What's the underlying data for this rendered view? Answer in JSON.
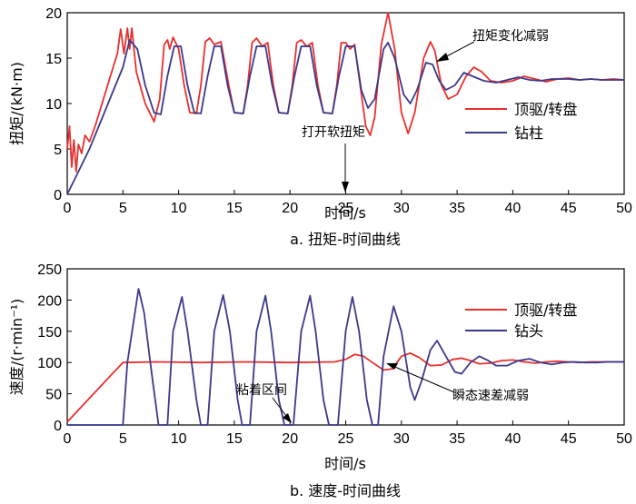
{
  "colors": {
    "drive": "#e8302e",
    "bit": "#3a3a8c",
    "axis": "#000000"
  },
  "chart_data": [
    {
      "type": "line",
      "caption": "a. 扭矩-时间曲线",
      "xlabel": "时间/s",
      "ylabel": "扭矩/(kN·m)",
      "xlim": [
        0,
        50
      ],
      "ylim": [
        0,
        20
      ],
      "xticks": [
        0,
        5,
        10,
        15,
        20,
        25,
        30,
        35,
        40,
        45,
        50
      ],
      "yticks": [
        0,
        5,
        10,
        15,
        20
      ],
      "annotations": [
        {
          "text": "打开软扭矩",
          "x": 25,
          "y": 0
        },
        {
          "text": "扭矩变化减弱",
          "x": 33,
          "y": 12.5
        }
      ],
      "legend_position": "right",
      "series": [
        {
          "name": "顶驱/转盘",
          "color": "#e8302e",
          "points": [
            [
              0,
              5
            ],
            [
              0.2,
              7.5
            ],
            [
              0.4,
              3
            ],
            [
              0.6,
              6
            ],
            [
              0.8,
              2.5
            ],
            [
              1.0,
              5.5
            ],
            [
              1.3,
              4.5
            ],
            [
              1.6,
              6.5
            ],
            [
              2,
              5.8
            ],
            [
              2.5,
              7.5
            ],
            [
              3,
              9.5
            ],
            [
              3.5,
              11.5
            ],
            [
              4,
              13.5
            ],
            [
              4.5,
              15.5
            ],
            [
              4.8,
              18.2
            ],
            [
              5.1,
              15.5
            ],
            [
              5.4,
              18.3
            ],
            [
              5.6,
              16
            ],
            [
              5.8,
              18.3
            ],
            [
              6.2,
              13.5
            ],
            [
              7,
              10
            ],
            [
              7.8,
              8
            ],
            [
              8.3,
              10.5
            ],
            [
              8.7,
              16.5
            ],
            [
              9,
              17
            ],
            [
              9.2,
              16
            ],
            [
              9.5,
              17.3
            ],
            [
              10,
              16
            ],
            [
              10.5,
              12
            ],
            [
              11,
              9
            ],
            [
              11.6,
              8.9
            ],
            [
              12,
              12
            ],
            [
              12.4,
              16.8
            ],
            [
              12.8,
              17.2
            ],
            [
              13.2,
              16.5
            ],
            [
              13.8,
              16.8
            ],
            [
              14.5,
              12
            ],
            [
              15,
              9
            ],
            [
              15.8,
              8.9
            ],
            [
              16.2,
              12
            ],
            [
              16.6,
              16.7
            ],
            [
              17,
              17.2
            ],
            [
              17.5,
              16.3
            ],
            [
              18,
              16.7
            ],
            [
              18.5,
              12
            ],
            [
              19,
              9
            ],
            [
              19.8,
              8.9
            ],
            [
              20.2,
              12
            ],
            [
              20.6,
              16.7
            ],
            [
              21,
              17
            ],
            [
              21.5,
              16.3
            ],
            [
              22,
              16.7
            ],
            [
              22.5,
              12
            ],
            [
              23,
              9
            ],
            [
              23.8,
              8.9
            ],
            [
              24.2,
              12
            ],
            [
              24.6,
              16.7
            ],
            [
              25,
              16.7
            ],
            [
              25.4,
              16
            ],
            [
              25.8,
              16.5
            ],
            [
              26.3,
              12
            ],
            [
              26.8,
              7.5
            ],
            [
              27.2,
              6.5
            ],
            [
              27.6,
              8.5
            ],
            [
              28.2,
              16.5
            ],
            [
              28.8,
              20
            ],
            [
              29.4,
              16
            ],
            [
              30,
              9
            ],
            [
              30.6,
              6.7
            ],
            [
              31.2,
              9
            ],
            [
              32,
              15
            ],
            [
              32.6,
              16.8
            ],
            [
              33,
              15.8
            ],
            [
              33.6,
              12
            ],
            [
              34.2,
              10.5
            ],
            [
              35,
              11
            ],
            [
              35.8,
              13
            ],
            [
              36.5,
              14
            ],
            [
              37.2,
              13.5
            ],
            [
              38,
              12.5
            ],
            [
              39,
              12.3
            ],
            [
              40,
              12.5
            ],
            [
              41,
              13
            ],
            [
              42,
              12.7
            ],
            [
              43,
              12.4
            ],
            [
              44,
              12.7
            ],
            [
              45,
              12.8
            ],
            [
              46,
              12.6
            ],
            [
              47,
              12.7
            ],
            [
              48,
              12.6
            ],
            [
              49,
              12.7
            ],
            [
              50,
              12.6
            ]
          ]
        },
        {
          "name": "钻柱",
          "color": "#3a3a8c",
          "points": [
            [
              0,
              0
            ],
            [
              1,
              2.5
            ],
            [
              2,
              5
            ],
            [
              3,
              8
            ],
            [
              4,
              11
            ],
            [
              5,
              14
            ],
            [
              5.6,
              17
            ],
            [
              6.3,
              16
            ],
            [
              7,
              12
            ],
            [
              7.8,
              9
            ],
            [
              8.4,
              8.8
            ],
            [
              9,
              13
            ],
            [
              9.6,
              16.3
            ],
            [
              10.2,
              16.3
            ],
            [
              10.8,
              12
            ],
            [
              11.4,
              9
            ],
            [
              12,
              8.9
            ],
            [
              12.6,
              13
            ],
            [
              13.2,
              16.3
            ],
            [
              13.8,
              16.3
            ],
            [
              14.4,
              12
            ],
            [
              15,
              9
            ],
            [
              15.8,
              8.9
            ],
            [
              16.4,
              13
            ],
            [
              17,
              16.3
            ],
            [
              17.8,
              16.3
            ],
            [
              18.4,
              12
            ],
            [
              19,
              9
            ],
            [
              19.8,
              8.9
            ],
            [
              20.4,
              13
            ],
            [
              21,
              16.3
            ],
            [
              21.8,
              16.3
            ],
            [
              22.4,
              12
            ],
            [
              23,
              9
            ],
            [
              23.8,
              8.9
            ],
            [
              24.4,
              13
            ],
            [
              25,
              16.3
            ],
            [
              25.8,
              16.3
            ],
            [
              26.4,
              11.5
            ],
            [
              27,
              9.5
            ],
            [
              27.6,
              10.5
            ],
            [
              28.4,
              16
            ],
            [
              28.8,
              16.7
            ],
            [
              29.4,
              15
            ],
            [
              30.2,
              11
            ],
            [
              30.8,
              10
            ],
            [
              31.4,
              11.5
            ],
            [
              32.2,
              14.5
            ],
            [
              32.8,
              14.3
            ],
            [
              33.4,
              12.5
            ],
            [
              34,
              11.5
            ],
            [
              34.8,
              12
            ],
            [
              35.6,
              13.4
            ],
            [
              36.4,
              13
            ],
            [
              37.4,
              12.5
            ],
            [
              38.5,
              12.3
            ],
            [
              39.5,
              12.6
            ],
            [
              40.5,
              12.9
            ],
            [
              41.5,
              12.6
            ],
            [
              42.5,
              12.5
            ],
            [
              43.5,
              12.7
            ],
            [
              45,
              12.7
            ],
            [
              46,
              12.6
            ],
            [
              47,
              12.7
            ],
            [
              48,
              12.6
            ],
            [
              49,
              12.6
            ],
            [
              50,
              12.6
            ]
          ]
        }
      ]
    },
    {
      "type": "line",
      "caption": "b. 速度-时间曲线",
      "xlabel": "时间/s",
      "ylabel": "速度/(r·min⁻¹)",
      "xlim": [
        0,
        50
      ],
      "ylim": [
        0,
        250
      ],
      "xticks": [
        0,
        5,
        10,
        15,
        20,
        25,
        30,
        35,
        40,
        45,
        50
      ],
      "yticks": [
        0,
        50,
        100,
        150,
        200,
        250
      ],
      "annotations": [
        {
          "text": "粘着区间",
          "x": 20,
          "y": 0
        },
        {
          "text": "瞬态速差减弱",
          "x": 29,
          "y": 90
        }
      ],
      "legend_position": "right",
      "series": [
        {
          "name": "顶驱/转盘",
          "color": "#e8302e",
          "points": [
            [
              0,
              5
            ],
            [
              5,
              100
            ],
            [
              8,
              101
            ],
            [
              12,
              100
            ],
            [
              16,
              101
            ],
            [
              20,
              100
            ],
            [
              24,
              101
            ],
            [
              25,
              105
            ],
            [
              25.8,
              113
            ],
            [
              26.6,
              110
            ],
            [
              27.4,
              100
            ],
            [
              28.4,
              88
            ],
            [
              29.2,
              90
            ],
            [
              30,
              110
            ],
            [
              30.8,
              115
            ],
            [
              31.6,
              108
            ],
            [
              32.6,
              95
            ],
            [
              33.6,
              96
            ],
            [
              34.6,
              105
            ],
            [
              35.4,
              107
            ],
            [
              36.2,
              103
            ],
            [
              37,
              98
            ],
            [
              38,
              99
            ],
            [
              39,
              103
            ],
            [
              40,
              104
            ],
            [
              41,
              101
            ],
            [
              42,
              99
            ],
            [
              43,
              101
            ],
            [
              44,
              102
            ],
            [
              45,
              101
            ],
            [
              46,
              100
            ],
            [
              47,
              101
            ],
            [
              48,
              101
            ],
            [
              49,
              101
            ],
            [
              50,
              101
            ]
          ]
        },
        {
          "name": "钻头",
          "color": "#3a3a8c",
          "points": [
            [
              0,
              0
            ],
            [
              5,
              0
            ],
            [
              5.4,
              100
            ],
            [
              6.4,
              218
            ],
            [
              6.9,
              180
            ],
            [
              7.6,
              80
            ],
            [
              8.2,
              0
            ],
            [
              9,
              0
            ],
            [
              9.5,
              150
            ],
            [
              10.3,
              205
            ],
            [
              10.8,
              150
            ],
            [
              11.6,
              40
            ],
            [
              12,
              0
            ],
            [
              12.6,
              0
            ],
            [
              13.2,
              150
            ],
            [
              14,
              208
            ],
            [
              14.6,
              150
            ],
            [
              15.3,
              40
            ],
            [
              15.7,
              0
            ],
            [
              16.4,
              0
            ],
            [
              17,
              150
            ],
            [
              17.8,
              207
            ],
            [
              18.3,
              150
            ],
            [
              19,
              40
            ],
            [
              19.5,
              0
            ],
            [
              20.3,
              0
            ],
            [
              21,
              150
            ],
            [
              21.8,
              207
            ],
            [
              22.3,
              150
            ],
            [
              23,
              40
            ],
            [
              23.5,
              0
            ],
            [
              24.3,
              0
            ],
            [
              25,
              150
            ],
            [
              25.6,
              205
            ],
            [
              26.2,
              150
            ],
            [
              26.9,
              40
            ],
            [
              27.4,
              0
            ],
            [
              27.9,
              0
            ],
            [
              28.4,
              110
            ],
            [
              29.3,
              190
            ],
            [
              30,
              150
            ],
            [
              30.8,
              60
            ],
            [
              31.2,
              40
            ],
            [
              31.8,
              70
            ],
            [
              32.6,
              120
            ],
            [
              33.2,
              135
            ],
            [
              34,
              110
            ],
            [
              34.8,
              85
            ],
            [
              35.4,
              82
            ],
            [
              36.2,
              100
            ],
            [
              37,
              110
            ],
            [
              37.8,
              103
            ],
            [
              38.5,
              95
            ],
            [
              39.5,
              95
            ],
            [
              40.5,
              103
            ],
            [
              41.5,
              106
            ],
            [
              42.5,
              100
            ],
            [
              43.5,
              97
            ],
            [
              44.5,
              100
            ],
            [
              45.5,
              101
            ],
            [
              46.5,
              100
            ],
            [
              47.5,
              100
            ],
            [
              48.5,
              101
            ],
            [
              50,
              101
            ]
          ]
        }
      ]
    }
  ]
}
